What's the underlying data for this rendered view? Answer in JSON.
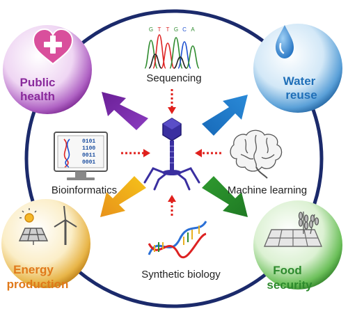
{
  "corners": {
    "public_health": {
      "line1": "Public",
      "line2": "health",
      "color": "#8a2a9c"
    },
    "water_reuse": {
      "line1": "Water",
      "line2": "reuse",
      "color": "#1f6fb8"
    },
    "energy_production": {
      "line1": "Energy",
      "line2": "production",
      "color": "#e0791a"
    },
    "food_security": {
      "line1": "Food",
      "line2": "security",
      "color": "#2d8a2d"
    }
  },
  "methods": {
    "sequencing": "Sequencing",
    "bioinformatics": "Bioinformatics",
    "machine_learning": "Machine learning",
    "synthetic_biology": "Synthetic biology"
  },
  "dna_letters": [
    "G",
    "T",
    "T",
    "G",
    "C",
    "A"
  ],
  "binary_rows": [
    "0101",
    "1100",
    "0011",
    "0001"
  ],
  "icons": {
    "public_health": "heart-cross-icon",
    "water_reuse": "water-drop-icon",
    "energy_production": "solar-wind-icon",
    "food_security": "grain-field-icon",
    "center": "bacteriophage-icon",
    "sequencing": "chromatogram-icon",
    "bioinformatics": "computer-dna-icon",
    "machine_learning": "brain-icon",
    "synthetic_biology": "dna-helix-icon"
  },
  "colors": {
    "ring": "#1b2a6b",
    "dotted_arrow": "#e0201c",
    "phage": "#3a2fa0"
  }
}
